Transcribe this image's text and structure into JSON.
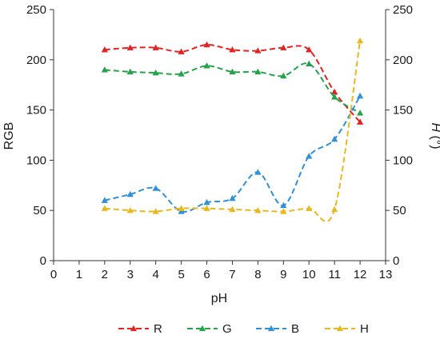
{
  "chart_data": {
    "type": "line",
    "xlabel": "pH",
    "ylabel_left": "RGB",
    "ylabel_right_italic": "H",
    "ylabel_right_unit": " (°)",
    "xlim": [
      0,
      13
    ],
    "ylim_left": [
      0,
      250
    ],
    "ylim_right": [
      0,
      250
    ],
    "x_ticks": [
      "0",
      "1",
      "2",
      "3",
      "4",
      "5",
      "6",
      "7",
      "8",
      "9",
      "10",
      "11",
      "12",
      "13"
    ],
    "y_ticks_left": [
      "0",
      "50",
      "100",
      "150",
      "200",
      "250"
    ],
    "y_ticks_right": [
      "0",
      "50",
      "100",
      "150",
      "200",
      "250"
    ],
    "grid": false,
    "legend_position": "bottom",
    "x": [
      2,
      3,
      4,
      5,
      6,
      7,
      8,
      9,
      10,
      11,
      12
    ],
    "series": [
      {
        "name": "R",
        "color": "#e52222",
        "axis": "left",
        "values": [
          210,
          212,
          212,
          208,
          215,
          210,
          209,
          212,
          210,
          168,
          138
        ]
      },
      {
        "name": "G",
        "color": "#23a34b",
        "axis": "left",
        "values": [
          190,
          188,
          187,
          186,
          194,
          188,
          188,
          184,
          196,
          163,
          147
        ]
      },
      {
        "name": "B",
        "color": "#2f90d8",
        "axis": "left",
        "values": [
          60,
          66,
          72,
          49,
          58,
          62,
          88,
          55,
          104,
          121,
          164
        ]
      },
      {
        "name": "H",
        "color": "#e8b81c",
        "axis": "right",
        "values": [
          52,
          50,
          49,
          52,
          52,
          51,
          50,
          49,
          52,
          51,
          219
        ]
      }
    ]
  }
}
